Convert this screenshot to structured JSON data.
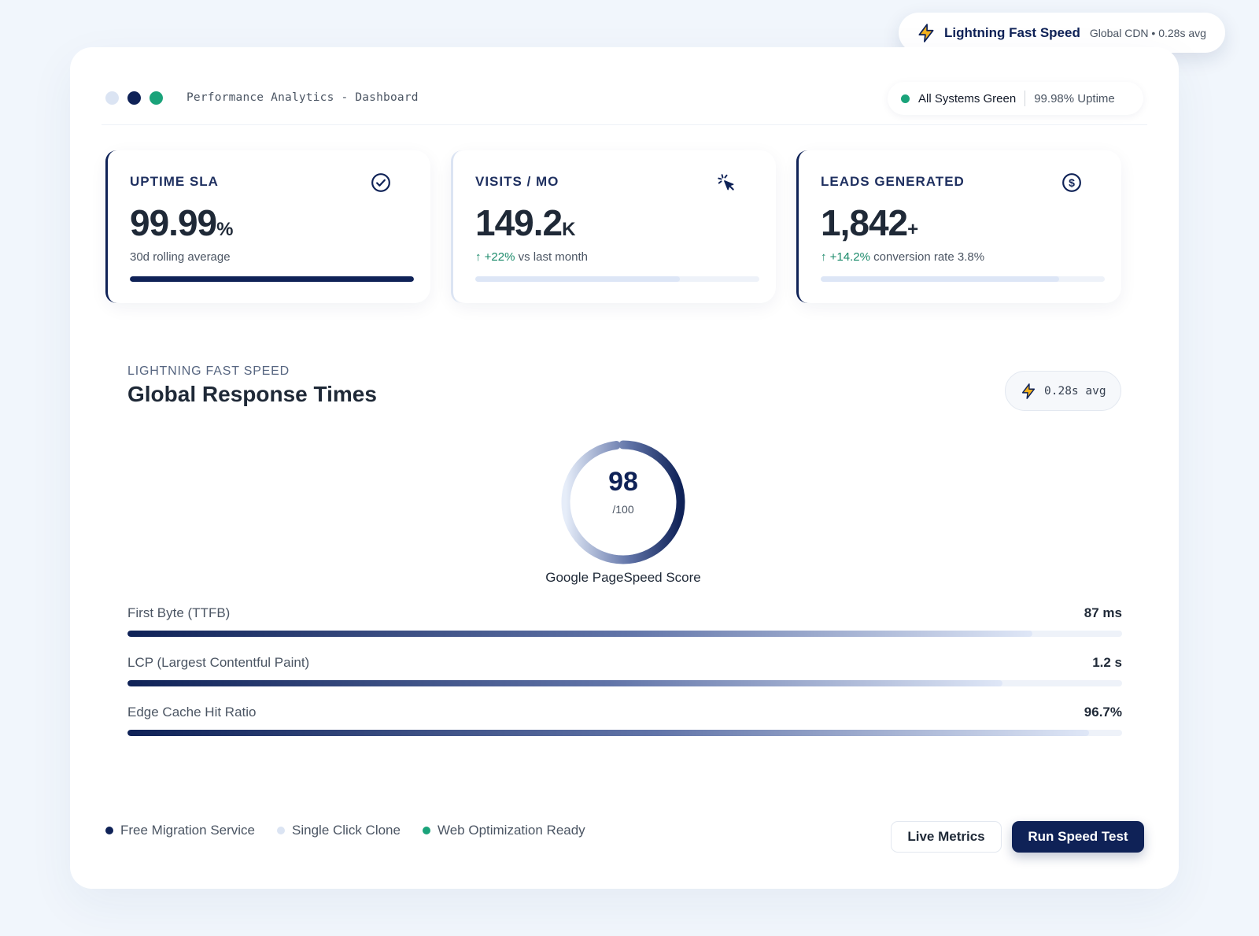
{
  "colors": {
    "navy": "#0f2257",
    "green": "#1aa37a",
    "light_blue": "#dbe4f3",
    "amber": "#f5b21c"
  },
  "float_badge": {
    "icon": "lightning-bolt-icon",
    "title": "Lightning Fast Speed",
    "subtitle": "Global CDN • 0.28s avg"
  },
  "window": {
    "title": "Performance Analytics - Dashboard",
    "dots": [
      "#dbe4f3",
      "#0f2257",
      "#1aa37a"
    ]
  },
  "status": {
    "label": "All Systems Green",
    "uptime": "99.98% Uptime"
  },
  "stats": [
    {
      "label": "UPTIME SLA",
      "icon": "check-circle-icon",
      "value": "99.99",
      "unit": "%",
      "trend": "",
      "sub": "30d rolling average",
      "progress": 1.0
    },
    {
      "label": "VISITS / MO",
      "icon": "cursor-click-icon",
      "value": "149.2",
      "unit": "K",
      "trend": "↑ +22%",
      "sub": " vs last month",
      "progress": 0.72
    },
    {
      "label": "LEADS GENERATED",
      "icon": "dollar-circle-icon",
      "value": "1,842",
      "unit": "+",
      "trend": "↑ +14.2%",
      "sub": " conversion rate 3.8%",
      "progress": 0.84
    }
  ],
  "section": {
    "eyebrow": "LIGHTNING FAST SPEED",
    "title": "Global Response Times",
    "avg_badge": "0.28s avg"
  },
  "gauge": {
    "score": "98",
    "denominator": "/100",
    "label": "Google PageSpeed Score",
    "fraction": 0.98
  },
  "metrics": [
    {
      "label": "First Byte (TTFB)",
      "value": "87 ms",
      "progress": 0.91
    },
    {
      "label": "LCP (Largest Contentful Paint)",
      "value": "1.2 s",
      "progress": 0.88
    },
    {
      "label": "Edge Cache Hit Ratio",
      "value": "96.7%",
      "progress": 0.967
    }
  ],
  "features": [
    {
      "label": "Free Migration Service",
      "dot": "#0f2257"
    },
    {
      "label": "Single Click Clone",
      "dot": "#dbe4f3"
    },
    {
      "label": "Web Optimization Ready",
      "dot": "#1aa37a"
    }
  ],
  "buttons": {
    "secondary": "Live Metrics",
    "primary": "Run Speed Test"
  }
}
